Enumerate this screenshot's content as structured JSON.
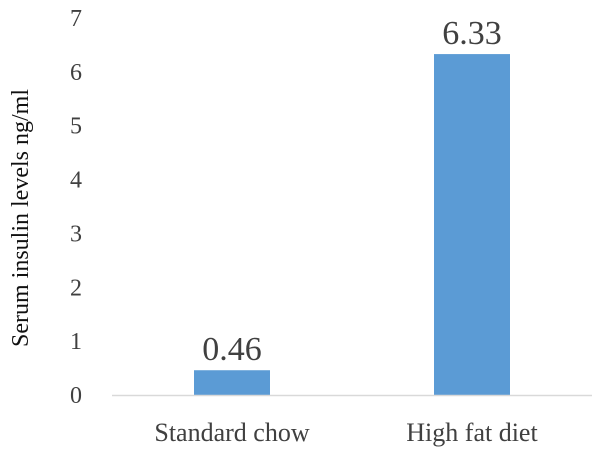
{
  "chart_data": {
    "type": "bar",
    "categories": [
      "Standard chow",
      "High fat diet"
    ],
    "values": [
      0.46,
      6.33
    ],
    "data_labels": [
      "0.46",
      "6.33"
    ],
    "ylabel": "Serum insulin levels ng/ml",
    "xlabel": "",
    "title": "",
    "ylim": [
      0,
      7
    ],
    "yticks": [
      0,
      1,
      2,
      3,
      4,
      5,
      6,
      7
    ],
    "ytick_labels": [
      "0",
      "1",
      "2",
      "3",
      "4",
      "5",
      "6",
      "7"
    ],
    "grid": false,
    "legend": "none",
    "bar_color": "#5b9bd5",
    "axis_color": "#d9d9d9"
  }
}
